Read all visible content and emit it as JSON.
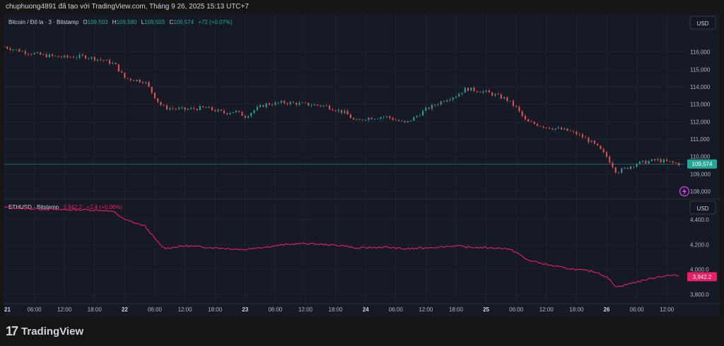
{
  "header": {
    "caption": "chuphuong4891 đã tạo với TradingView.com, Tháng 9 26, 2025 15:13 UTC+7"
  },
  "footer": {
    "brand": "TradingView",
    "logo_text": "17"
  },
  "colors": {
    "up": "#26a69a",
    "down": "#ef5350",
    "eth_line": "#e91e63",
    "bg": "#161a25",
    "grid": "#242733",
    "text": "#b2b5be"
  },
  "top_pane": {
    "symbol": "Bitcoin / Đô la · 3 · Bitstamp",
    "o_label": "O",
    "o_value": "109,503",
    "h_label": "H",
    "h_value": "109,580",
    "l_label": "L",
    "l_value": "109,503",
    "c_label": "C",
    "c_value": "109,574",
    "change": "+72 (+0.07%)",
    "currency": "USD",
    "last_price": "109,574"
  },
  "bottom_pane": {
    "symbol": "ETHUSD · Bitstamp",
    "value": "3,942.2",
    "change": "+2.4 (+0.06%)",
    "currency": "USD",
    "last_price": "3,942.2"
  },
  "chart_data": [
    {
      "type": "candlestick",
      "title": "Bitcoin / Đô la · 3 · Bitstamp",
      "ylim": [
        107800,
        117200
      ],
      "y_ticks": [
        116000,
        115000,
        114000,
        113000,
        112000,
        111000,
        110000,
        109000,
        108000
      ],
      "y_tick_labels": [
        "116,000",
        "115,000",
        "114,000",
        "113,000",
        "112,000",
        "111,000",
        "110,000",
        "109,000",
        "108,000"
      ],
      "x": [
        0,
        4,
        8,
        12,
        16,
        20,
        22,
        24,
        28,
        31,
        32,
        36,
        40,
        44,
        46,
        48,
        50,
        52,
        56,
        60,
        64,
        68,
        70,
        72,
        76,
        80,
        84,
        86,
        88,
        90,
        92,
        96,
        100,
        102,
        104,
        108,
        112,
        114,
        116,
        118,
        120,
        122,
        126,
        128,
        130,
        132,
        136,
        138,
        140,
        142,
        144,
        146,
        148,
        150,
        152,
        156,
        160,
        164,
        168,
        172,
        176,
        180
      ],
      "close": [
        116300,
        116000,
        115800,
        115700,
        115750,
        115500,
        115300,
        114500,
        114300,
        113000,
        112800,
        112700,
        112800,
        112500,
        112600,
        112300,
        112700,
        113000,
        113100,
        113000,
        112900,
        112500,
        112000,
        112200,
        112300,
        111900,
        112700,
        113000,
        113300,
        113500,
        113900,
        113700,
        113300,
        112800,
        112000,
        111700,
        111500,
        111300,
        111000,
        110600,
        110000,
        109100,
        109600,
        109700,
        109800,
        109700,
        109500,
        109400,
        109600,
        109700,
        109500,
        109550,
        109600,
        109574,
        109600,
        109574,
        109574,
        109574,
        109574,
        109574,
        109574,
        109574
      ]
    },
    {
      "type": "line",
      "title": "ETHUSD · Bitstamp",
      "ylim": [
        3760,
        4520
      ],
      "y_ticks": [
        4400,
        4200,
        4000,
        3800
      ],
      "y_tick_labels": [
        "4,400.0",
        "4,200.0",
        "4,000.0",
        "3,800.0"
      ],
      "x": [
        0,
        4,
        8,
        12,
        16,
        20,
        22,
        24,
        28,
        31,
        32,
        36,
        40,
        44,
        46,
        48,
        50,
        52,
        56,
        60,
        64,
        68,
        70,
        72,
        76,
        80,
        84,
        86,
        88,
        90,
        92,
        96,
        100,
        102,
        104,
        108,
        112,
        114,
        116,
        118,
        120,
        122,
        126,
        128,
        130,
        132,
        136,
        138,
        140,
        142,
        144,
        146,
        148,
        150,
        152,
        156,
        160,
        164,
        168,
        172,
        176,
        180
      ],
      "y": [
        4500,
        4490,
        4485,
        4480,
        4480,
        4475,
        4460,
        4400,
        4350,
        4200,
        4170,
        4190,
        4180,
        4170,
        4165,
        4160,
        4175,
        4180,
        4200,
        4210,
        4200,
        4190,
        4170,
        4175,
        4180,
        4165,
        4175,
        4180,
        4185,
        4190,
        4180,
        4175,
        4170,
        4140,
        4080,
        4040,
        4010,
        4000,
        3990,
        3980,
        3940,
        3860,
        3900,
        3920,
        3940,
        3950,
        3955,
        3950,
        3945,
        3942,
        3940,
        3942,
        3942,
        3942,
        3942,
        3942,
        3942,
        3942,
        3942,
        3942,
        3942,
        3942
      ]
    }
  ],
  "x_axis": {
    "labels": [
      "21",
      "06:00",
      "12:00",
      "18:00",
      "22",
      "06:00",
      "12:00",
      "18:00",
      "23",
      "06:00",
      "12:00",
      "18:00",
      "24",
      "06:00",
      "12:00",
      "18:00",
      "25",
      "06:00",
      "12:00",
      "18:00",
      "26",
      "06:00",
      "12:00"
    ],
    "hours": [
      0,
      6,
      12,
      18,
      24,
      30,
      36,
      42,
      48,
      54,
      60,
      66,
      72,
      78,
      84,
      90,
      96,
      102,
      108,
      114,
      120,
      126,
      132
    ],
    "range_hours": [
      0,
      135.5
    ]
  }
}
